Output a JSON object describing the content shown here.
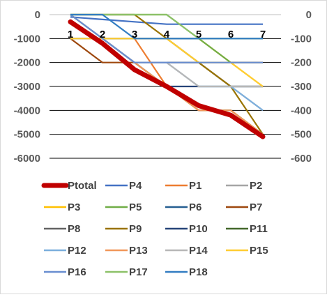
{
  "chart_data": {
    "type": "line",
    "title": "",
    "xlabel": "",
    "ylabel": "",
    "categories": [
      "1",
      "2",
      "3",
      "4",
      "5",
      "6",
      "7"
    ],
    "ylim_left": [
      -6000,
      0
    ],
    "ylim_right": [
      -600,
      0
    ],
    "yticks_left": [
      "0",
      "-1000",
      "-2000",
      "-3000",
      "-4000",
      "-5000",
      "-6000"
    ],
    "yticks_right": [
      "0",
      "-100",
      "-200",
      "-300",
      "-400",
      "-500",
      "-600"
    ],
    "grid": true,
    "legend_position": "bottom",
    "primary_series": [
      {
        "name": "Ptotal",
        "color": "#c00000",
        "values": [
          -300,
          -1200,
          -2300,
          -3000,
          -3800,
          -4200,
          -5100
        ]
      }
    ],
    "secondary_series": [
      {
        "name": "P4",
        "color": "#4472c4",
        "values": [
          -10,
          -20,
          -30,
          -40,
          -40,
          -40,
          -40
        ]
      },
      {
        "name": "P1",
        "color": "#ed7d31",
        "values": [
          -100,
          -100,
          -100,
          -300,
          -400,
          -400,
          -500
        ]
      },
      {
        "name": "P2",
        "color": "#a5a5a5",
        "values": [
          -100,
          -100,
          -100,
          -100,
          -200,
          -300,
          -400
        ]
      },
      {
        "name": "P3",
        "color": "#ffc000",
        "values": [
          -100,
          -100,
          -100,
          -100,
          -100,
          -200,
          -300
        ]
      },
      {
        "name": "P5",
        "color": "#70ad47",
        "values": [
          0,
          0,
          0,
          0,
          -100,
          -200,
          -200
        ]
      },
      {
        "name": "P6",
        "color": "#255e91",
        "values": [
          -100,
          -100,
          -100,
          -100,
          -100,
          -100,
          -100
        ]
      },
      {
        "name": "P7",
        "color": "#9e480e",
        "values": [
          -100,
          -200,
          -200,
          -200,
          -200,
          -200,
          -200
        ]
      },
      {
        "name": "P8",
        "color": "#636363",
        "values": [
          -100,
          -100,
          -200,
          -200,
          -200,
          -300,
          -300
        ]
      },
      {
        "name": "P9",
        "color": "#997300",
        "values": [
          0,
          0,
          0,
          -100,
          -200,
          -300,
          -500
        ]
      },
      {
        "name": "P10",
        "color": "#264478",
        "values": [
          -100,
          -100,
          -200,
          -300,
          -300,
          -300,
          -300
        ]
      },
      {
        "name": "P11",
        "color": "#43682b",
        "values": [
          0,
          -100,
          -200,
          -300,
          -400,
          -400,
          -500
        ]
      },
      {
        "name": "P12",
        "color": "#7cafdd",
        "values": [
          -100,
          -100,
          -200,
          -200,
          -300,
          -300,
          -400
        ]
      },
      {
        "name": "P13",
        "color": "#f1975a",
        "values": [
          0,
          -100,
          -200,
          -300,
          -400,
          -400,
          -500
        ]
      },
      {
        "name": "P14",
        "color": "#b7b7b7",
        "values": [
          0,
          -100,
          -200,
          -200,
          -300,
          -300,
          -300
        ]
      },
      {
        "name": "P15",
        "color": "#ffcd33",
        "values": [
          -100,
          -100,
          -100,
          -100,
          -200,
          -200,
          -300
        ]
      },
      {
        "name": "P16",
        "color": "#698ed0",
        "values": [
          0,
          -100,
          -200,
          -200,
          -200,
          -200,
          -200
        ]
      },
      {
        "name": "P17",
        "color": "#8cc168",
        "values": [
          0,
          0,
          0,
          0,
          -100,
          -100,
          -100
        ]
      },
      {
        "name": "P18",
        "color": "#327dc2",
        "values": [
          0,
          0,
          -100,
          -100,
          -100,
          -100,
          -100
        ]
      }
    ],
    "legend_order": [
      "Ptotal",
      "P4",
      "P1",
      "P2",
      "P3",
      "P5",
      "P6",
      "P7",
      "P8",
      "P9",
      "P10",
      "P11",
      "P12",
      "P13",
      "P14",
      "P15",
      "P16",
      "P17",
      "P18"
    ]
  }
}
